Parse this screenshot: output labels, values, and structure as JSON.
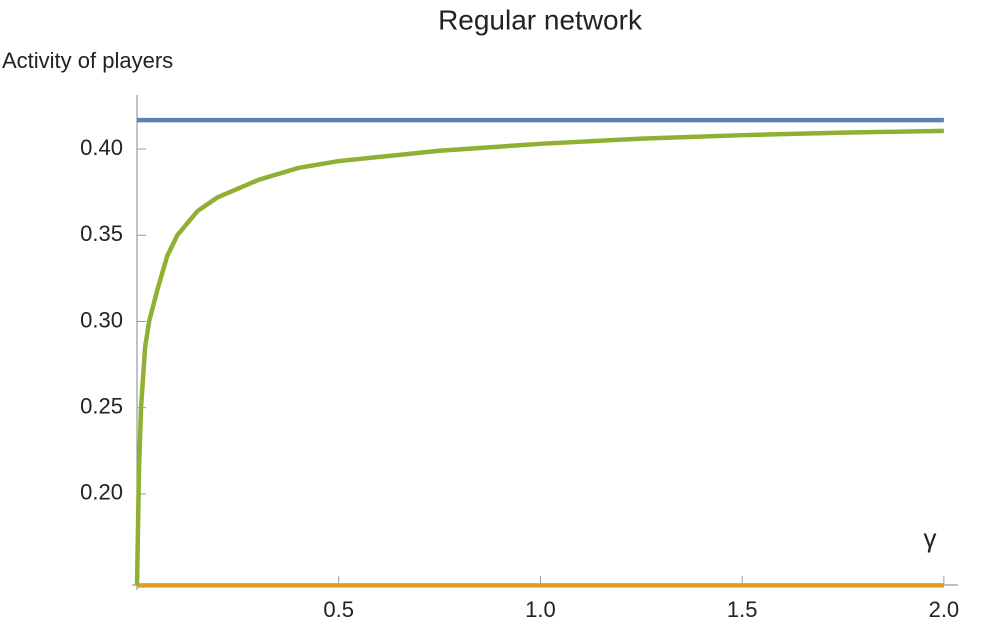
{
  "chart_data": {
    "type": "line",
    "title": "Regular network",
    "y_label": "Activity of players",
    "x_label": "γ",
    "x": [
      0,
      0.005,
      0.01,
      0.02,
      0.03,
      0.05,
      0.075,
      0.1,
      0.15,
      0.2,
      0.3,
      0.4,
      0.5,
      0.75,
      1.0,
      1.25,
      1.5,
      1.75,
      2.0
    ],
    "series": [
      {
        "color": "#5e81b5",
        "values": [
          0.4167,
          0.4167,
          0.4167,
          0.4167,
          0.4167,
          0.4167,
          0.4167,
          0.4167,
          0.4167,
          0.4167,
          0.4167,
          0.4167,
          0.4167,
          0.4167,
          0.4167,
          0.4167,
          0.4167,
          0.4167,
          0.4167
        ]
      },
      {
        "color": "#e19c24",
        "values": [
          0.147,
          0.147,
          0.147,
          0.147,
          0.147,
          0.147,
          0.147,
          0.147,
          0.147,
          0.147,
          0.147,
          0.147,
          0.147,
          0.147,
          0.147,
          0.147,
          0.147,
          0.147,
          0.147
        ]
      },
      {
        "color": "#8fb032",
        "values": [
          0.147,
          0.215,
          0.25,
          0.285,
          0.3,
          0.318,
          0.338,
          0.35,
          0.364,
          0.372,
          0.382,
          0.389,
          0.393,
          0.399,
          0.403,
          0.406,
          0.408,
          0.4095,
          0.4105
        ]
      }
    ],
    "xlim": [
      0,
      2.035
    ],
    "ylim": [
      0.1472,
      0.4313
    ],
    "xticks": [
      0.5,
      {
        "value": 1.0,
        "label": "1.0"
      },
      1.5,
      {
        "value": 2.0,
        "label": "2.0"
      }
    ],
    "yticks": [
      {
        "value": 0.2,
        "label": "0.20"
      },
      0.25,
      {
        "value": 0.3,
        "label": "0.30"
      },
      0.35,
      {
        "value": 0.4,
        "label": "0.40"
      }
    ],
    "grid": false
  }
}
